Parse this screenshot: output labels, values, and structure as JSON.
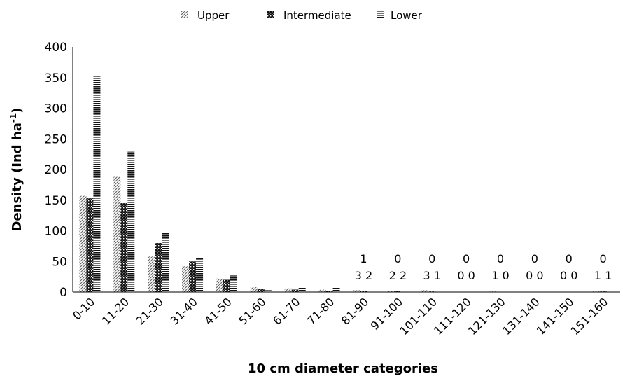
{
  "chart_data": {
    "type": "bar",
    "title": "",
    "xlabel": "10 cm diameter categories",
    "ylabel_main": "Density (Ind ha",
    "ylabel_sup": "-1",
    "ylabel_close": ")",
    "ylim": [
      0,
      400
    ],
    "yticks": [
      0,
      50,
      100,
      150,
      200,
      250,
      300,
      350,
      400
    ],
    "legend_position": "top-center",
    "categories": [
      "0-10",
      "11-20",
      "21-30",
      "31-40",
      "41-50",
      "51-60",
      "61-70",
      "71-80",
      "81-90",
      "91-100",
      "101-110",
      "111-120",
      "121-130",
      "131-140",
      "141-150",
      "151-160"
    ],
    "series": [
      {
        "name": "Upper",
        "pattern": "diagonal-hatch",
        "values": [
          157,
          188,
          58,
          42,
          22,
          8,
          6,
          4,
          3,
          2,
          3,
          0,
          1,
          0,
          0,
          1
        ]
      },
      {
        "name": "Intermediate",
        "pattern": "checker",
        "values": [
          153,
          145,
          80,
          50,
          20,
          5,
          4,
          2,
          2,
          2,
          1,
          0,
          0,
          0,
          0,
          1
        ]
      },
      {
        "name": "Lower",
        "pattern": "horizontal-lines",
        "values": [
          353,
          229,
          97,
          55,
          27,
          3,
          8,
          7,
          1,
          0,
          0,
          0,
          0,
          0,
          0,
          0
        ]
      }
    ],
    "data_labels": [
      {
        "category": "81-90",
        "lines": [
          "1",
          "3 2"
        ]
      },
      {
        "category": "91-100",
        "lines": [
          "0",
          "2 2"
        ]
      },
      {
        "category": "101-110",
        "lines": [
          "0",
          "3 1"
        ]
      },
      {
        "category": "111-120",
        "lines": [
          "0",
          "0 0"
        ]
      },
      {
        "category": "121-130",
        "lines": [
          "0",
          "1 0"
        ]
      },
      {
        "category": "131-140",
        "lines": [
          "0",
          "0 0"
        ]
      },
      {
        "category": "141-150",
        "lines": [
          "0",
          "0 0"
        ]
      },
      {
        "category": "151-160",
        "lines": [
          "0",
          "1 1"
        ]
      }
    ]
  }
}
